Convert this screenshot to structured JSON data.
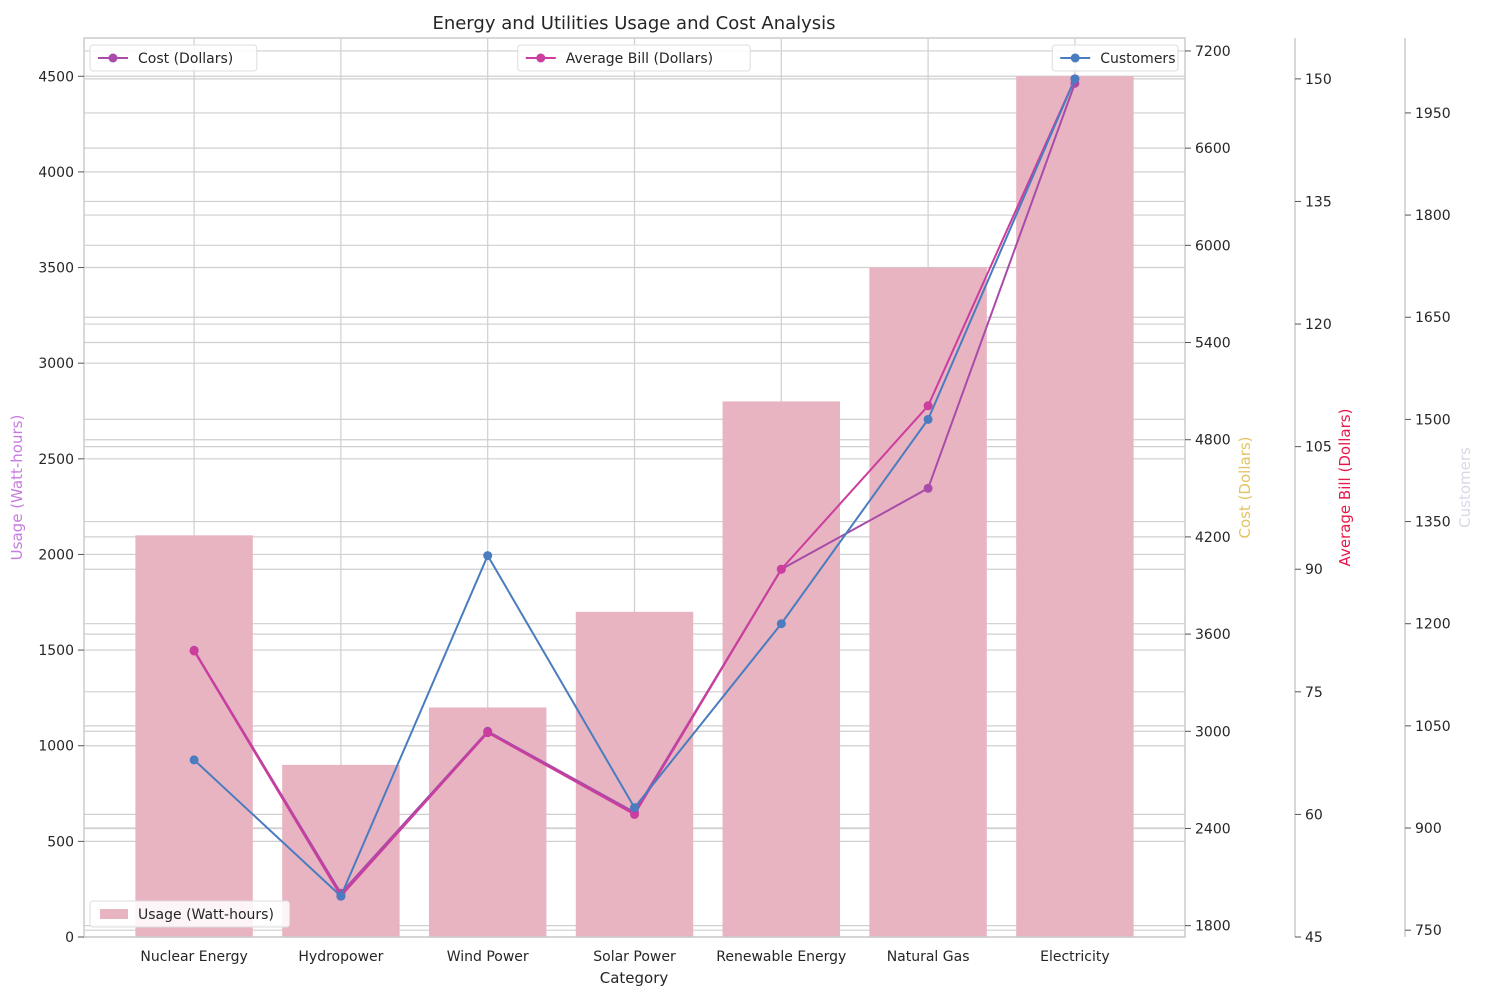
{
  "chart_data": {
    "type": "bar",
    "title": "Energy and Utilities Usage and Cost Analysis",
    "xlabel": "Category",
    "categories": [
      "Nuclear Energy",
      "Hydropower",
      "Wind Power",
      "Solar Power",
      "Renewable Energy",
      "Natural Gas",
      "Electricity"
    ],
    "grid": true,
    "axes": [
      {
        "key": "usage",
        "label": "Usage (Watt-hours)",
        "label_color": "#c77be0",
        "range": [
          0,
          4700
        ],
        "ticks": [
          0,
          500,
          1000,
          1500,
          2000,
          2500,
          3000,
          3500,
          4000,
          4500
        ]
      },
      {
        "key": "cost",
        "label": "Cost (Dollars)",
        "label_color": "#e3c462",
        "range": [
          1730,
          7280
        ],
        "ticks": [
          1800,
          2400,
          3000,
          3600,
          4200,
          4800,
          5400,
          6000,
          6600,
          7200
        ]
      },
      {
        "key": "bill",
        "label": "Average Bill (Dollars)",
        "label_color": "#e8174a",
        "range": [
          45,
          155
        ],
        "ticks": [
          45,
          60,
          75,
          90,
          105,
          120,
          135,
          150
        ]
      },
      {
        "key": "customers",
        "label": "Customers",
        "label_color": "#d8d8e8",
        "range": [
          740,
          2060
        ],
        "ticks": [
          750,
          900,
          1050,
          1200,
          1350,
          1500,
          1650,
          1800,
          1950
        ]
      }
    ],
    "series": [
      {
        "name": "Usage (Watt-hours)",
        "kind": "bar",
        "axis": "usage",
        "color": "#e8b4c2",
        "legend_pos": "bottom-left",
        "values": [
          2100,
          900,
          1200,
          1700,
          2800,
          3500,
          4500
        ]
      },
      {
        "name": "Cost (Dollars)",
        "kind": "line",
        "axis": "cost",
        "color": "#a94ba8",
        "legend_pos": "top-left",
        "values": [
          3500,
          2000,
          3000,
          2500,
          4000,
          4500,
          7000
        ]
      },
      {
        "name": "Average Bill (Dollars)",
        "kind": "line",
        "axis": "bill",
        "color": "#cc3d9e",
        "legend_pos": "top-center",
        "values": [
          80,
          50,
          70,
          60,
          90,
          110,
          150
        ]
      },
      {
        "name": "Customers",
        "kind": "line",
        "axis": "customers",
        "color": "#4a7cbf",
        "legend_pos": "top-right",
        "values": [
          1000,
          800,
          1300,
          930,
          1200,
          1500,
          2000
        ]
      }
    ]
  }
}
